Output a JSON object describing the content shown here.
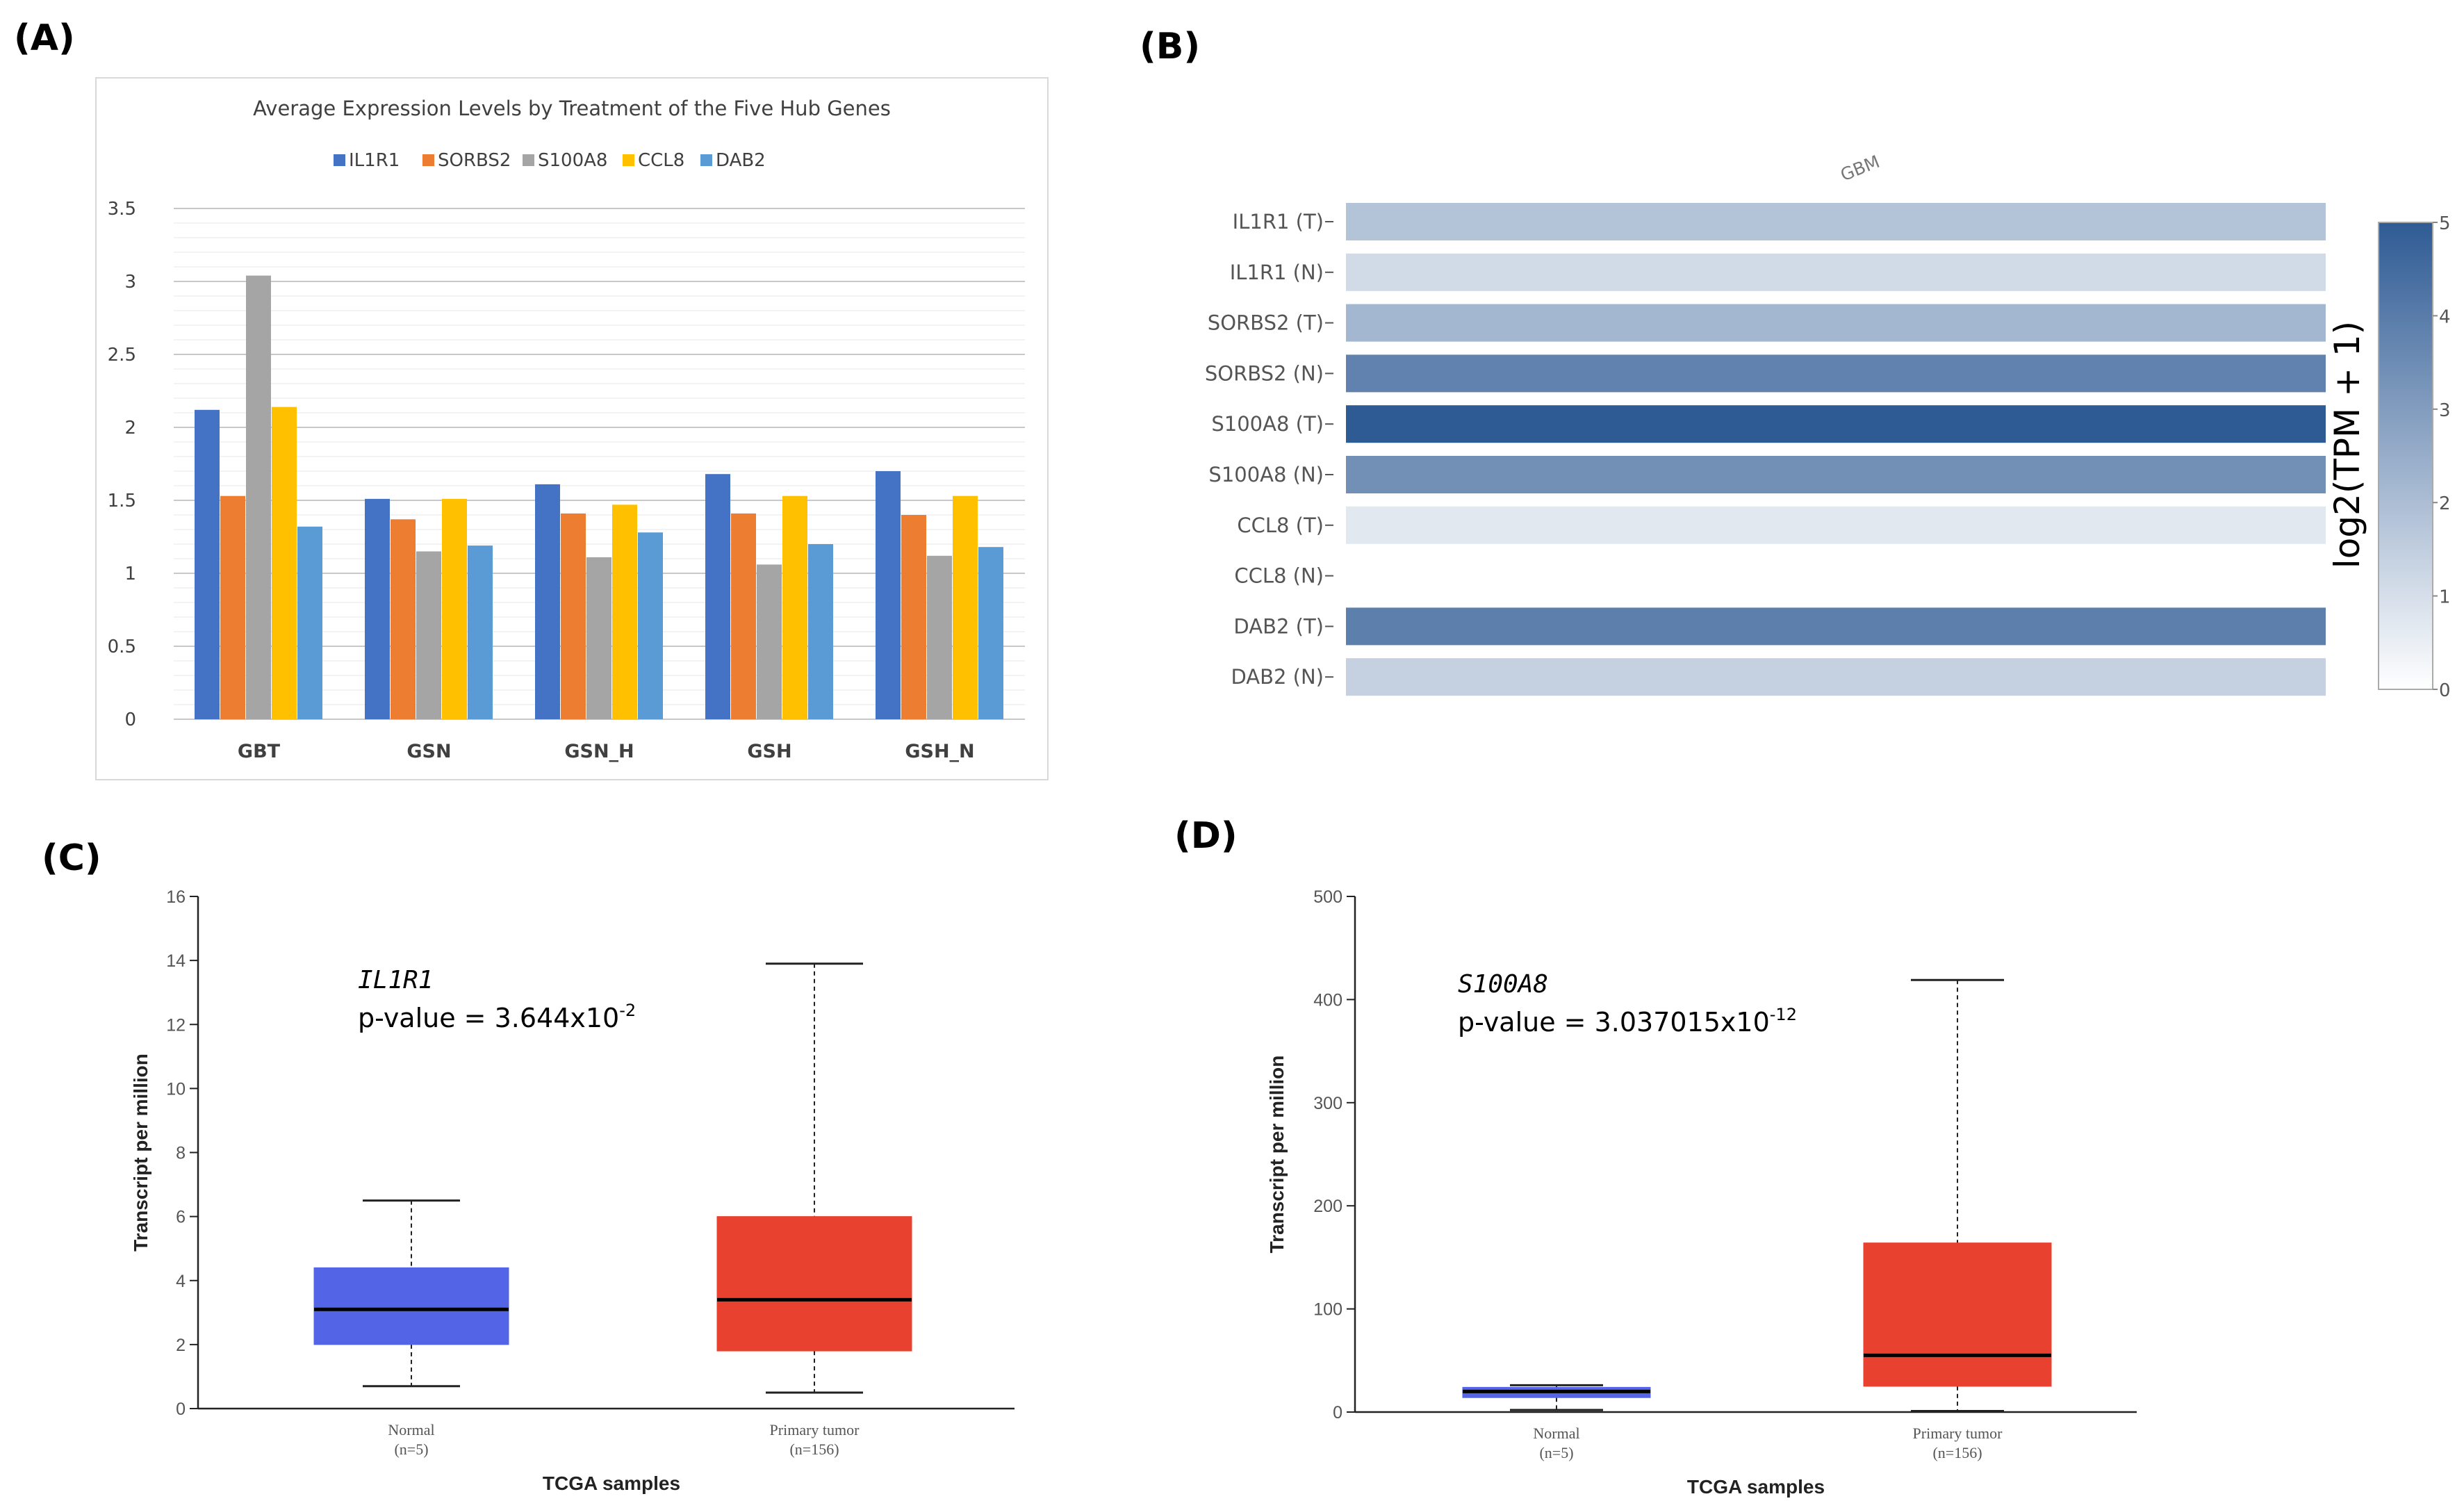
{
  "panels": {
    "a": "(A)",
    "b": "(B)",
    "c": "(C)",
    "d": "(D)"
  },
  "chart_data": [
    {
      "id": "A",
      "type": "bar",
      "title": "Average Expression Levels by Treatment of the Five Hub Genes",
      "categories": [
        "GBT",
        "GSN",
        "GSN_H",
        "GSH",
        "GSH_N"
      ],
      "series": [
        {
          "name": "IL1R1",
          "color": "#4472C4",
          "values": [
            2.12,
            1.51,
            1.61,
            1.68,
            1.7
          ]
        },
        {
          "name": "SORBS2",
          "color": "#ED7D31",
          "values": [
            1.53,
            1.37,
            1.41,
            1.41,
            1.4
          ]
        },
        {
          "name": "S100A8",
          "color": "#A5A5A5",
          "values": [
            3.04,
            1.15,
            1.11,
            1.06,
            1.12
          ]
        },
        {
          "name": "CCL8",
          "color": "#FFC000",
          "values": [
            2.14,
            1.51,
            1.47,
            1.53,
            1.53
          ]
        },
        {
          "name": "DAB2",
          "color": "#5B9BD5",
          "values": [
            1.32,
            1.19,
            1.28,
            1.2,
            1.18
          ]
        }
      ],
      "yticks": [
        "0",
        "0.5",
        "1",
        "1.5",
        "2",
        "2.5",
        "3",
        "3.5"
      ],
      "ylim": [
        0,
        3.5
      ],
      "legend": "top"
    },
    {
      "id": "B",
      "type": "heatmap",
      "column": "GBM",
      "rows": [
        "IL1R1 (T)",
        "IL1R1 (N)",
        "SORBS2 (T)",
        "SORBS2 (N)",
        "S100A8 (T)",
        "S100A8 (N)",
        "CCL8 (T)",
        "CCL8 (N)",
        "DAB2 (T)",
        "DAB2 (N)"
      ],
      "values": [
        1.8,
        1.1,
        2.2,
        3.8,
        5.0,
        3.4,
        0.7,
        0.0,
        3.9,
        1.4
      ],
      "colorbar": {
        "min": 0,
        "max": 5,
        "ticks": [
          "0",
          "1",
          "2",
          "3",
          "4",
          "5"
        ],
        "title": "log2(TPM + 1)",
        "low_color": "#ffffff",
        "high_color": "#2f5b94"
      }
    },
    {
      "id": "C",
      "type": "box",
      "gene": "IL1R1",
      "pvalue_prefix": "p-value = 3.644x10",
      "pvalue_exp": "-2",
      "ylabel": "Transcript per million",
      "xlabel": "TCGA samples",
      "ylim": [
        0,
        16
      ],
      "yticks": [
        "0",
        "2",
        "4",
        "6",
        "8",
        "10",
        "12",
        "14",
        "16"
      ],
      "groups": [
        {
          "name": "Normal",
          "n": "(n=5)",
          "color": "#5464e6",
          "min": 0.7,
          "q1": 2.0,
          "median": 3.1,
          "q3": 4.4,
          "max": 6.5
        },
        {
          "name": "Primary tumor",
          "n": "(n=156)",
          "color": "#e8412f",
          "min": 0.5,
          "q1": 1.8,
          "median": 3.4,
          "q3": 6.0,
          "max": 13.9
        }
      ]
    },
    {
      "id": "D",
      "type": "box",
      "gene": "S100A8",
      "pvalue_prefix": "p-value = 3.037015x10",
      "pvalue_exp": "-12",
      "ylabel": "Transcript per million",
      "xlabel": "TCGA samples",
      "ylim": [
        0,
        500
      ],
      "yticks": [
        "0",
        "100",
        "200",
        "300",
        "400",
        "500"
      ],
      "groups": [
        {
          "name": "Normal",
          "n": "(n=5)",
          "color": "#5464e6",
          "min": 2,
          "q1": 14,
          "median": 20,
          "q3": 24,
          "max": 26
        },
        {
          "name": "Primary tumor",
          "n": "(n=156)",
          "color": "#e8412f",
          "min": 1,
          "q1": 25,
          "median": 55,
          "q3": 164,
          "max": 419
        }
      ]
    }
  ]
}
